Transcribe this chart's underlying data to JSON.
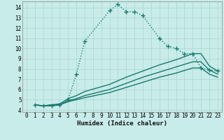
{
  "xlabel": "Humidex (Indice chaleur)",
  "bg_color": "#c8ecea",
  "grid_color": "#b0d8d4",
  "line_color": "#1a7a6e",
  "xlim": [
    -0.5,
    23.5
  ],
  "ylim": [
    3.8,
    14.6
  ],
  "xticks": [
    0,
    1,
    2,
    3,
    4,
    5,
    6,
    7,
    8,
    9,
    10,
    11,
    12,
    13,
    14,
    15,
    16,
    17,
    18,
    19,
    20,
    21,
    22,
    23
  ],
  "yticks": [
    4,
    5,
    6,
    7,
    8,
    9,
    10,
    11,
    12,
    13,
    14
  ],
  "series": [
    {
      "x": [
        1,
        2,
        3,
        4,
        5,
        6,
        7,
        10,
        11,
        12,
        13,
        14,
        16,
        17,
        18,
        19,
        20,
        21,
        22,
        23
      ],
      "y": [
        4.5,
        4.4,
        4.4,
        4.5,
        5.0,
        7.5,
        10.7,
        13.7,
        14.3,
        13.6,
        13.6,
        13.2,
        11.0,
        10.2,
        10.0,
        9.5,
        9.5,
        8.1,
        7.9,
        7.8
      ],
      "marker": "+",
      "markersize": 4,
      "linewidth": 1.0,
      "dotted": true
    },
    {
      "x": [
        1,
        2,
        3,
        4,
        5,
        6,
        7,
        10,
        12,
        14,
        16,
        18,
        20,
        21,
        22,
        23
      ],
      "y": [
        4.5,
        4.4,
        4.5,
        4.6,
        5.1,
        5.4,
        5.8,
        6.5,
        7.2,
        7.8,
        8.4,
        8.9,
        9.5,
        9.5,
        8.3,
        7.8
      ],
      "marker": null,
      "linewidth": 1.0,
      "dotted": false
    },
    {
      "x": [
        1,
        2,
        3,
        4,
        5,
        6,
        7,
        10,
        12,
        14,
        16,
        18,
        20,
        21,
        22,
        23
      ],
      "y": [
        4.5,
        4.4,
        4.5,
        4.5,
        4.9,
        5.1,
        5.4,
        6.0,
        6.6,
        7.2,
        7.7,
        8.2,
        8.7,
        8.7,
        7.9,
        7.5
      ],
      "marker": null,
      "linewidth": 1.0,
      "dotted": false
    },
    {
      "x": [
        1,
        2,
        3,
        4,
        5,
        6,
        7,
        10,
        12,
        14,
        16,
        18,
        20,
        21,
        22,
        23
      ],
      "y": [
        4.5,
        4.4,
        4.4,
        4.5,
        4.8,
        5.0,
        5.2,
        5.7,
        6.2,
        6.7,
        7.2,
        7.6,
        8.1,
        8.1,
        7.5,
        7.2
      ],
      "marker": null,
      "linewidth": 1.0,
      "dotted": false
    }
  ]
}
